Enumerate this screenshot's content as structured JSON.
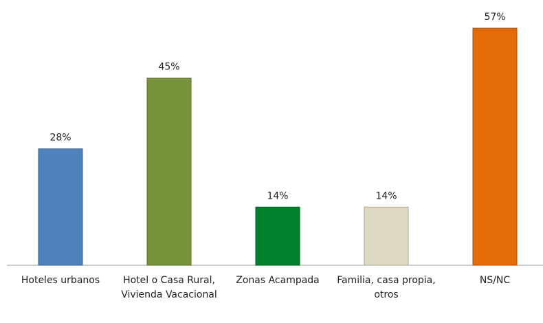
{
  "chart_data": {
    "type": "bar",
    "categories": [
      "Hoteles urbanos",
      "Hotel o Casa Rural, Vivienda Vacacional",
      "Zonas Acampada",
      "Familia, casa propia, otros",
      "NS/NC"
    ],
    "values": [
      28,
      45,
      14,
      14,
      57
    ],
    "value_labels": [
      "28%",
      "45%",
      "14%",
      "14%",
      "57%"
    ],
    "colors": [
      "#4f81bd",
      "#77933c",
      "#00802b",
      "#ddd9c3",
      "#e36c09"
    ]
  }
}
